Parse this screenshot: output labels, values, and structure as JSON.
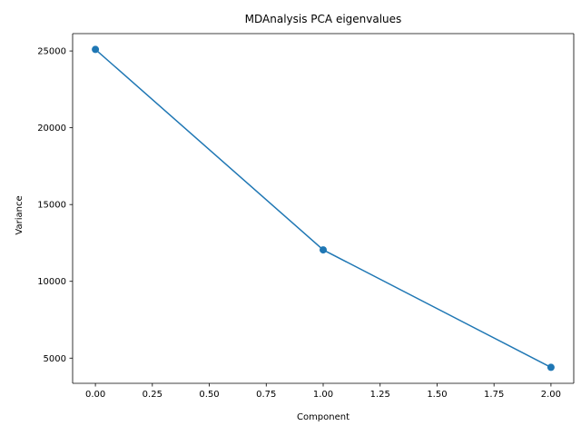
{
  "chart_data": {
    "type": "line",
    "title": "MDAnalysis PCA eigenvalues",
    "xlabel": "Component",
    "ylabel": "Variance",
    "x": [
      0,
      1,
      2
    ],
    "series": [
      {
        "values": [
          25100,
          12050,
          4400
        ],
        "color": "#1f77b4",
        "marker": "circle"
      }
    ],
    "xlim": [
      -0.1,
      2.1
    ],
    "ylim": [
      3360,
      26130
    ],
    "xticks": [
      0.0,
      0.25,
      0.5,
      0.75,
      1.0,
      1.25,
      1.5,
      1.75,
      2.0
    ],
    "xtick_labels": [
      "0.00",
      "0.25",
      "0.50",
      "0.75",
      "1.00",
      "1.25",
      "1.50",
      "1.75",
      "2.00"
    ],
    "yticks": [
      5000,
      10000,
      15000,
      20000,
      25000
    ],
    "ytick_labels": [
      "5000",
      "10000",
      "15000",
      "20000",
      "25000"
    ],
    "grid": false,
    "legend": "none"
  }
}
